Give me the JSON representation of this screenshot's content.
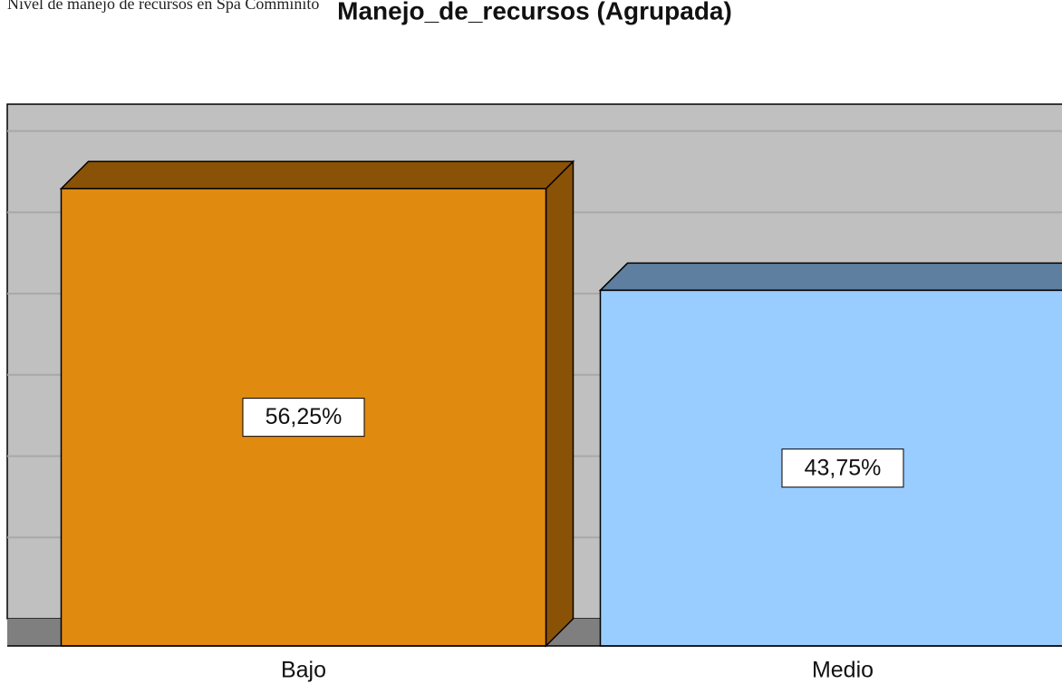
{
  "caption": "Nivel de manejo de recursos en Spa Comminito",
  "chart_data": {
    "type": "bar3d",
    "title": "Manejo_de_recursos (Agrupada)",
    "categories": [
      "Bajo",
      "Medio"
    ],
    "values": [
      56.25,
      43.75
    ],
    "value_labels": [
      "56,25%",
      "43,75%"
    ],
    "colors": [
      "#e08a10",
      "#99ccff"
    ],
    "side_colors": [
      "#8a5206",
      "#5e7f9f"
    ],
    "ylim": [
      0,
      63.3
    ],
    "yticks": [
      10,
      20,
      30,
      40,
      50,
      60
    ],
    "grid": true
  }
}
